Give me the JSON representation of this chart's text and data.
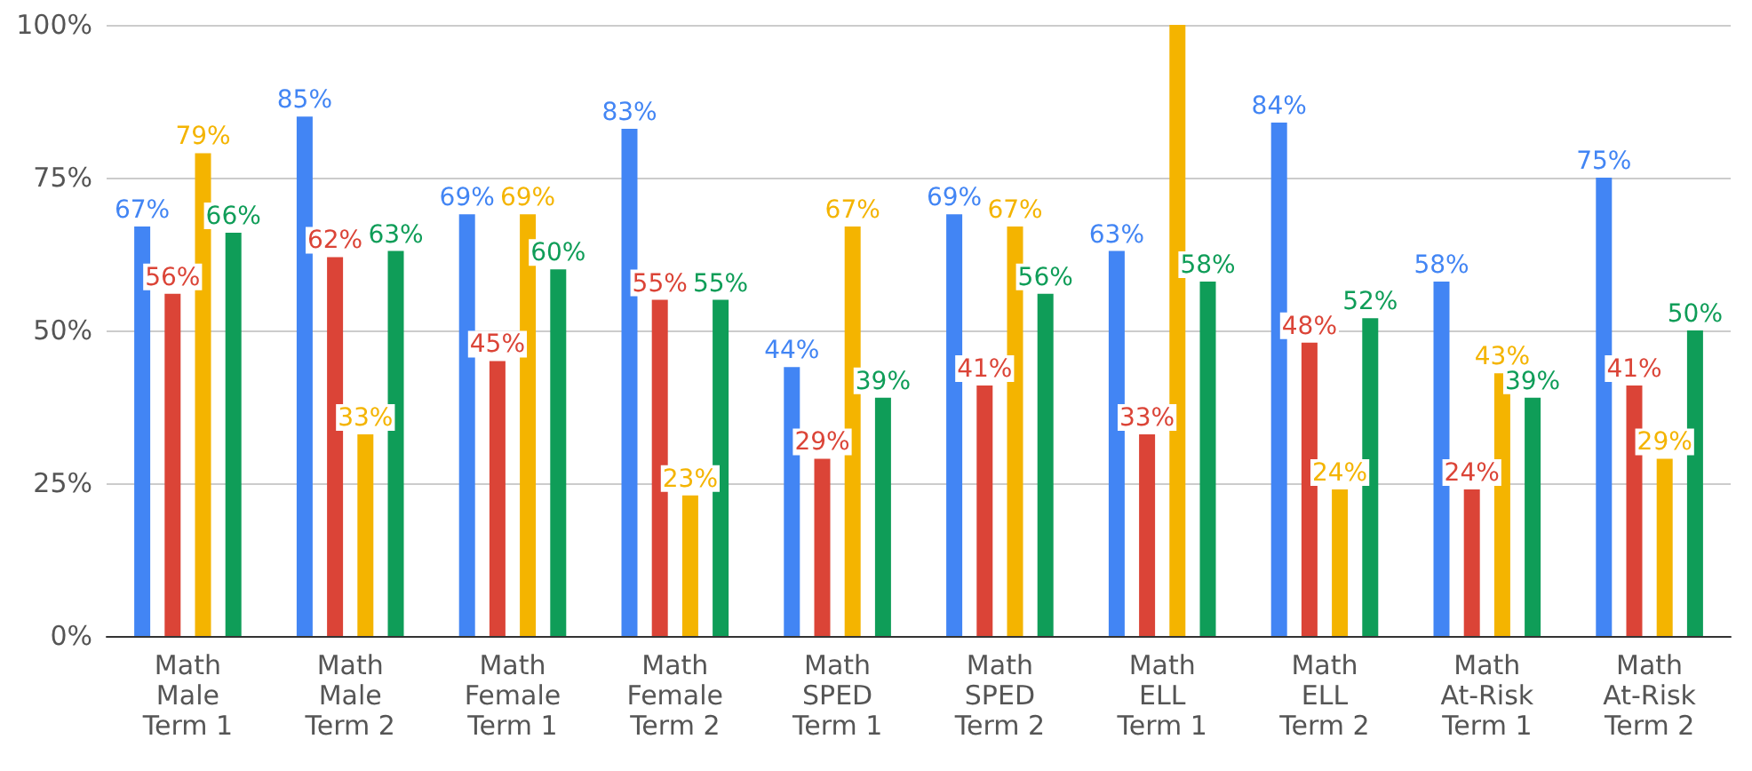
{
  "chart_data": {
    "type": "bar",
    "categories": [
      "Math\nMale\nTerm 1",
      "Math\nMale\nTerm 2",
      "Math\nFemale\nTerm 1",
      "Math\nFemale\nTerm 2",
      "Math\nSPED\nTerm 1",
      "Math\nSPED\nTerm 2",
      "Math\nELL\nTerm 1",
      "Math\nELL\nTerm 2",
      "Math\nAt-Risk\nTerm 1",
      "Math\nAt-Risk\nTerm 2"
    ],
    "series": [
      {
        "color": "#4285f4",
        "values": [
          67,
          85,
          69,
          83,
          44,
          69,
          63,
          84,
          58,
          75
        ],
        "value_labels": [
          "67%",
          "85%",
          "69%",
          "83%",
          "44%",
          "69%",
          "63%",
          "84%",
          "58%",
          "75%"
        ]
      },
      {
        "color": "#db4437",
        "values": [
          56,
          62,
          45,
          55,
          29,
          41,
          33,
          48,
          24,
          41
        ],
        "value_labels": [
          "56%",
          "62%",
          "45%",
          "55%",
          "29%",
          "41%",
          "33%",
          "48%",
          "24%",
          "41%"
        ]
      },
      {
        "color": "#f4b400",
        "values": [
          79,
          33,
          69,
          23,
          67,
          67,
          100,
          24,
          43,
          29
        ],
        "value_labels": [
          "79%",
          "33%",
          "69%",
          "23%",
          "67%",
          "67%",
          null,
          "24%",
          "43%",
          "29%"
        ]
      },
      {
        "color": "#0f9d58",
        "values": [
          66,
          63,
          60,
          55,
          39,
          56,
          58,
          52,
          39,
          50
        ],
        "value_labels": [
          "66%",
          "63%",
          "60%",
          "55%",
          "39%",
          "56%",
          "58%",
          "52%",
          "39%",
          "50%"
        ]
      }
    ],
    "ylim": [
      0,
      100
    ],
    "yticks": [
      {
        "value": 0,
        "label": "0%"
      },
      {
        "value": 25,
        "label": "25%"
      },
      {
        "value": 50,
        "label": "50%"
      },
      {
        "value": 75,
        "label": "75%"
      },
      {
        "value": 100,
        "label": "100%"
      }
    ],
    "grid": "y"
  }
}
